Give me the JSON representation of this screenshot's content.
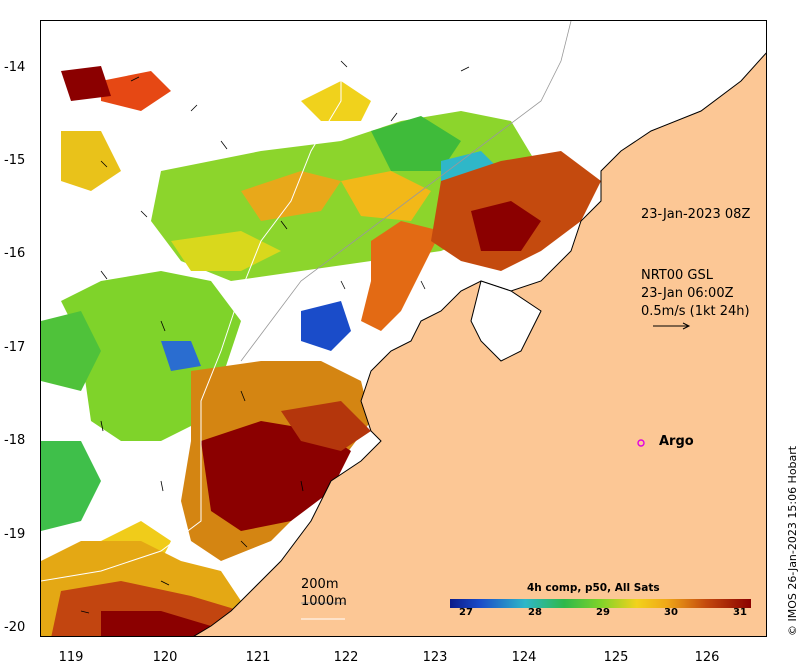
{
  "axes": {
    "y_ticks": [
      "-14",
      "-15",
      "-16",
      "-17",
      "-18",
      "-19",
      "-20"
    ],
    "x_ticks": [
      "119",
      "120",
      "121",
      "122",
      "123",
      "124",
      "125",
      "126"
    ]
  },
  "annotations": {
    "sst_time": "23-Jan-2023 08Z",
    "current_model": "NRT00 GSL",
    "current_time": "23-Jan 06:00Z",
    "current_scale": "0.5m/s (1kt 24h)",
    "argo_label": "Argo",
    "isobath_200": "200m",
    "isobath_1000": "1000m"
  },
  "colorbar": {
    "title": "4h comp, p50, All Sats",
    "ticks": [
      "27",
      "28",
      "29",
      "30",
      "31"
    ],
    "min": 26.7,
    "max": 31.3
  },
  "credit": "© IMOS 26-Jan-2023 15:06 Hobart",
  "colors": {
    "land": "#fcc795",
    "sst_cold": "#0a1a8a",
    "sst_hot": "#8b0000",
    "argo": "#e000e0"
  }
}
